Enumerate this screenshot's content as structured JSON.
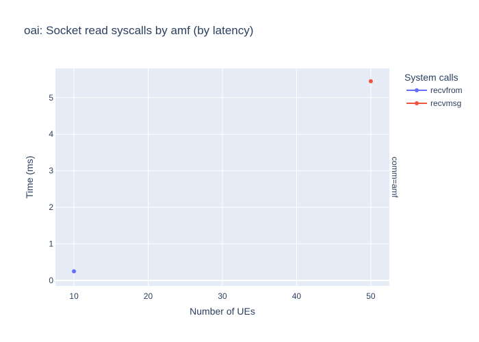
{
  "chart_data": {
    "type": "scatter",
    "title": "oai: Socket read syscalls by amf (by latency)",
    "xlabel": "Number of UEs",
    "ylabel": "Time (ms)",
    "xlim": [
      7.5,
      52.5
    ],
    "ylim": [
      -0.15,
      5.8
    ],
    "xticks": [
      10,
      20,
      30,
      40,
      50
    ],
    "yticks": [
      0,
      1,
      2,
      3,
      4,
      5
    ],
    "grid": true,
    "legend_title": "System calls",
    "legend_position": "top-right",
    "facet_label": "comm=amf",
    "series": [
      {
        "name": "recvfrom",
        "color": "#636efa",
        "points": [
          {
            "x": 10,
            "y": 0.25
          }
        ]
      },
      {
        "name": "recvmsg",
        "color": "#ef553b",
        "points": [
          {
            "x": 50,
            "y": 5.45
          }
        ]
      }
    ]
  }
}
